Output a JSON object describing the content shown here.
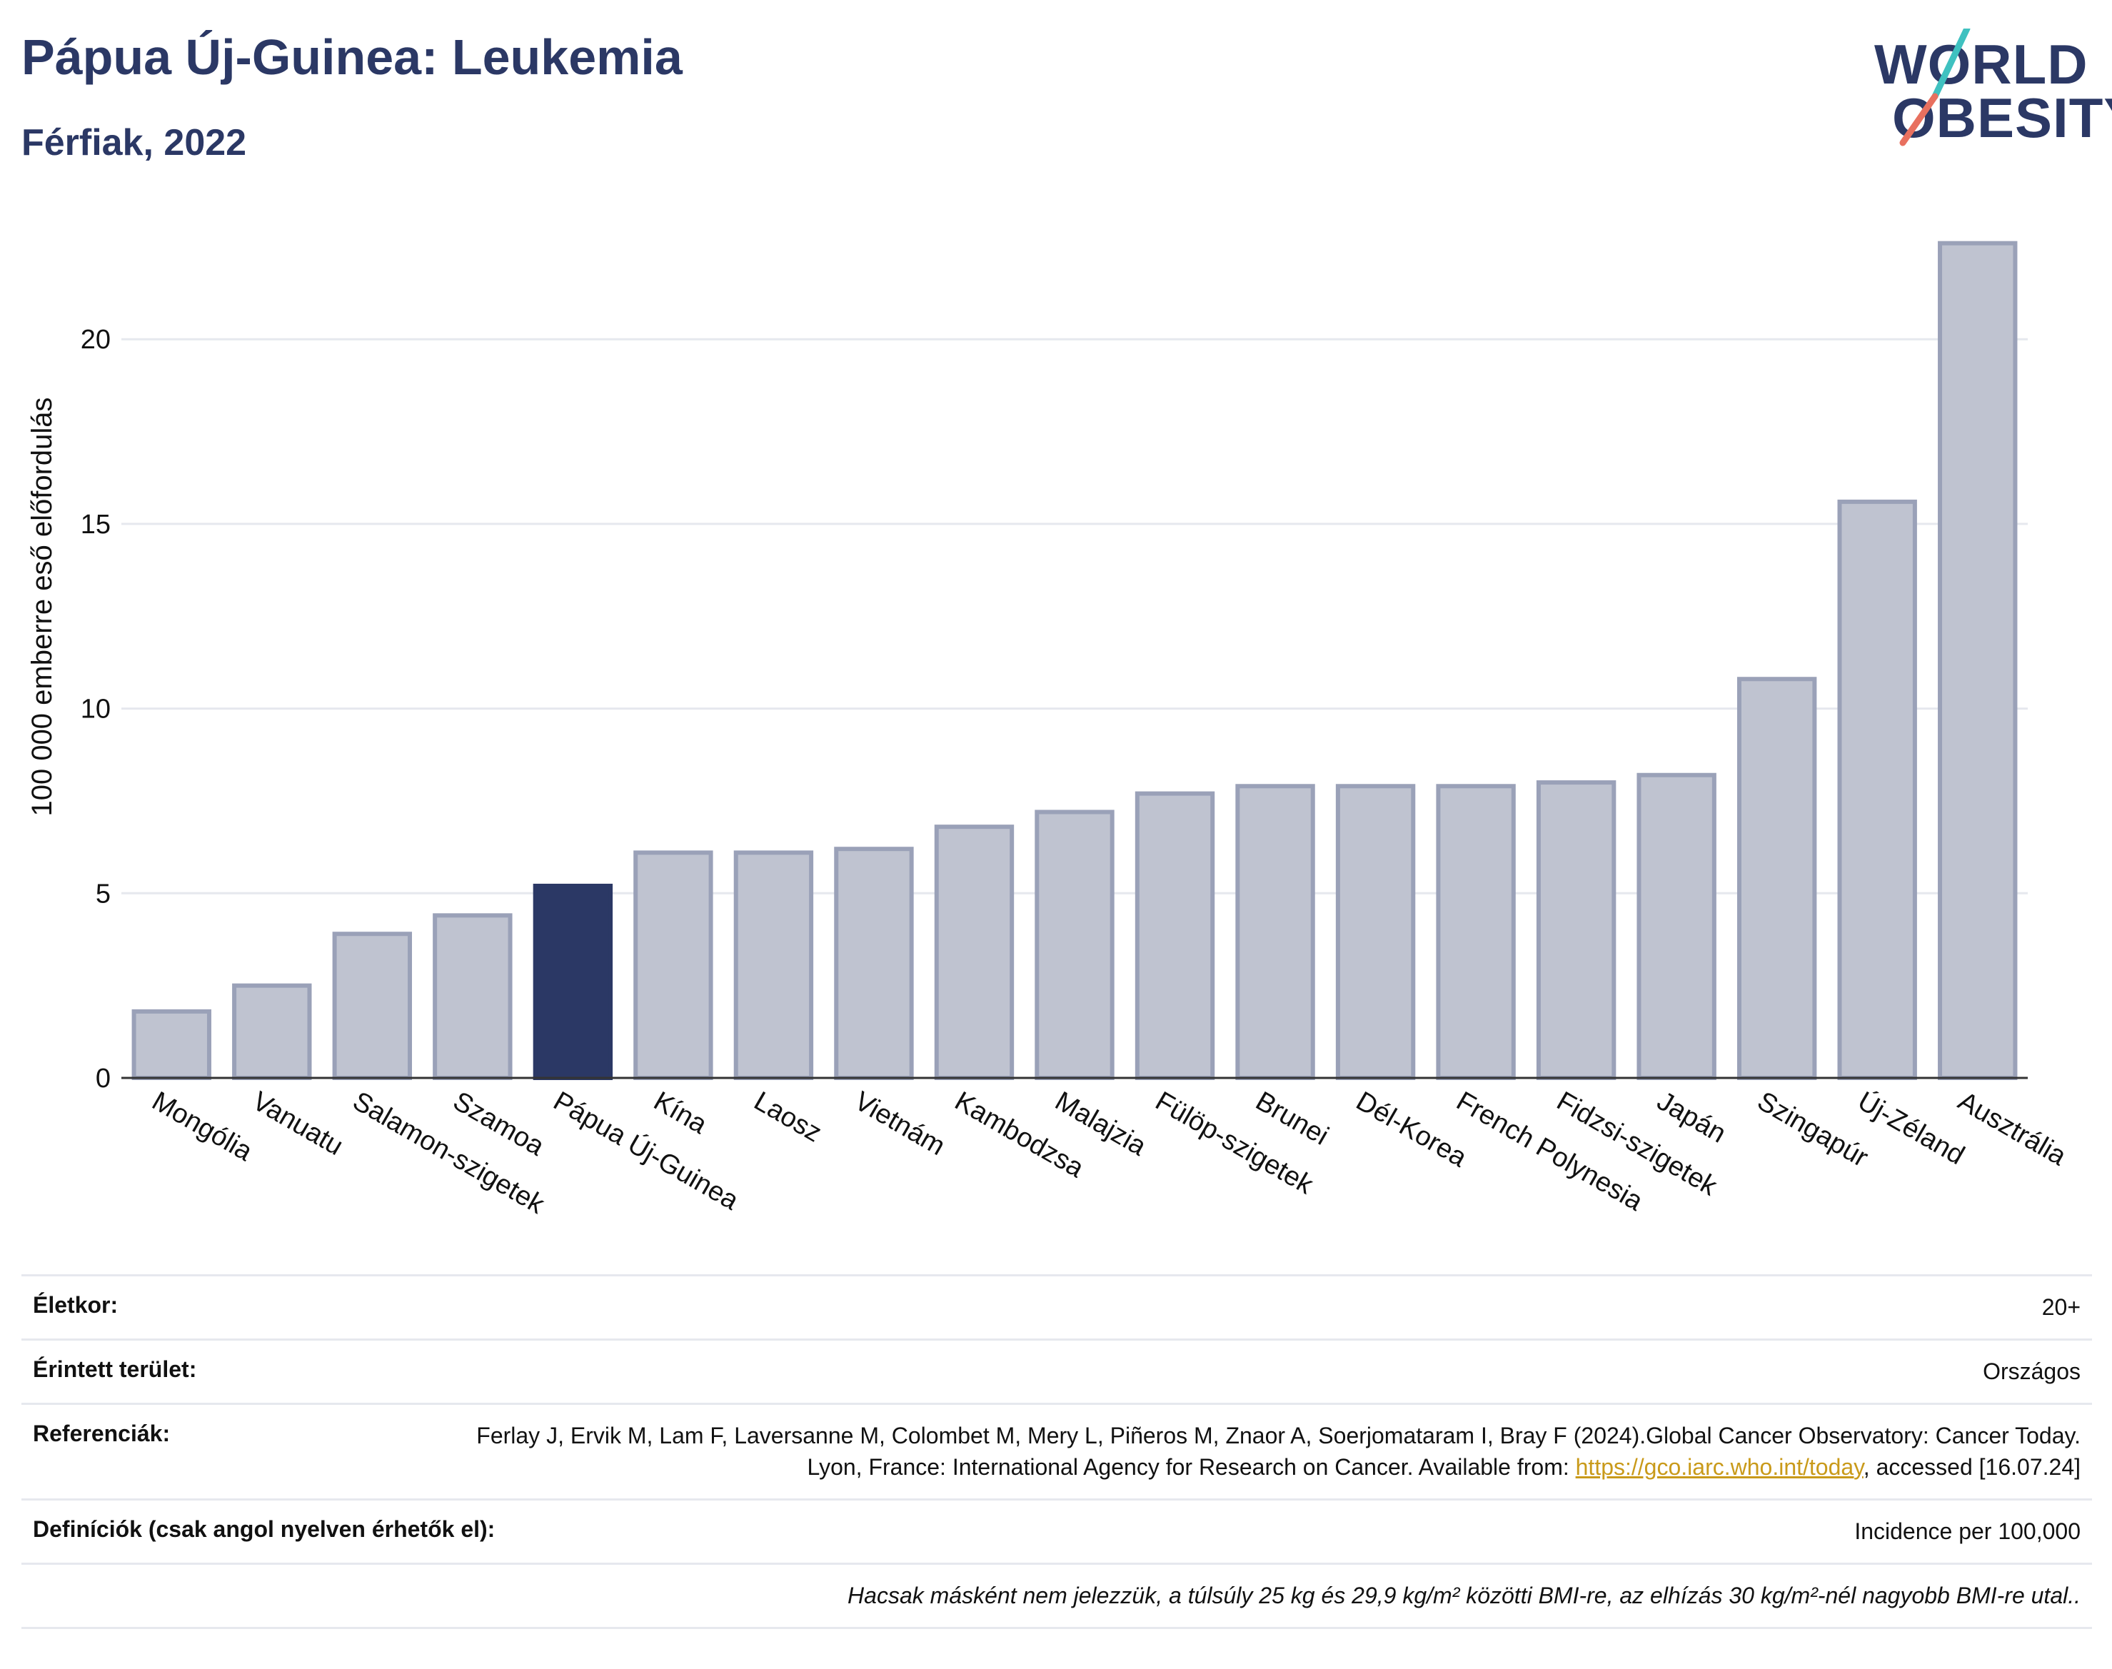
{
  "header": {
    "title": "Pápua Új-Guinea: Leukemia",
    "subtitle": "Férfiak, 2022",
    "logo_line1": "WORLD",
    "logo_line2": "OBESITY"
  },
  "colors": {
    "title": "#2b3865",
    "bar": "#bfc3d0",
    "bar_edge": "#9aa1b8",
    "highlight": "#2b3865",
    "logo_teal": "#3fc1c0",
    "logo_coral": "#e8705f",
    "link": "#c99a1a"
  },
  "chart_data": {
    "type": "bar",
    "title": "Pápua Új-Guinea: Leukemia",
    "subtitle": "Férfiak, 2022",
    "ylabel": "100 000 emberre eső előfordulás",
    "xlabel": "",
    "ylim": [
      0,
      23
    ],
    "yticks": [
      0,
      5,
      10,
      15,
      20
    ],
    "grid": true,
    "highlight": "Pápua Új-Guinea",
    "categories": [
      "Mongólia",
      "Vanuatu",
      "Salamon-szigetek",
      "Szamoa",
      "Pápua Új-Guinea",
      "Kína",
      "Laosz",
      "Vietnám",
      "Kambodzsa",
      "Malajzia",
      "Fülöp-szigetek",
      "Brunei",
      "Dél-Korea",
      "French Polynesia",
      "Fidzsi-szigetek",
      "Japán",
      "Szingapúr",
      "Új-Zéland",
      "Ausztrália"
    ],
    "values": [
      1.8,
      2.5,
      3.9,
      4.4,
      5.2,
      6.1,
      6.1,
      6.2,
      6.8,
      7.2,
      7.7,
      7.9,
      7.9,
      7.9,
      8.0,
      8.2,
      10.8,
      15.6,
      22.6
    ]
  },
  "info": {
    "age_label": "Életkor:",
    "age_value": "20+",
    "area_label": "Érintett terület:",
    "area_value": "Országos",
    "ref_label": "Referenciák:",
    "ref_text_1": "Ferlay J, Ervik M, Lam F, Laversanne M, Colombet M, Mery L, Piñeros M, Znaor A, Soerjomataram I, Bray F (2024).Global Cancer Observatory: Cancer Today. Lyon, France: International Agency for Research on Cancer. Available from: ",
    "ref_link": "https://gco.iarc.who.int/today",
    "ref_text_2": ", accessed [16.07.24]",
    "def_label": "Definíciók (csak angol nyelven érhetők el):",
    "def_value": "Incidence per 100,000",
    "note": "Hacsak másként nem jelezzük, a túlsúly 25 kg és 29,9 kg/m² közötti BMI-re, az elhízás 30 kg/m²-nél nagyobb BMI-re utal.."
  }
}
